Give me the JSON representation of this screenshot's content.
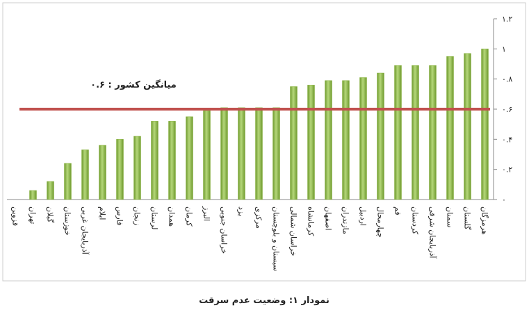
{
  "chart_data": {
    "type": "bar",
    "title": "نمودار ۱: وضعيت عدم سرقت",
    "annotation": "ميانگين كشور : ۰.۶",
    "average": 0.6,
    "average_color": "#c0504d",
    "categories": [
      "قزوين",
      "تهران",
      "گيلان",
      "خوزستان",
      "آذربايجان غربی",
      "ايلام",
      "فارس",
      "زنجان",
      "لرستان",
      "همدان",
      "كرمان",
      "البرز",
      "خراسان جنوبی",
      "يزد",
      "مركزی",
      "سيستان و بلوچستان",
      "خراسان شمالی",
      "كرمانشاه",
      "اصفهان",
      "مازندران",
      "اردبيل",
      "چهارمحال",
      "قم",
      "كردستان",
      "آذربايجان شرقی",
      "سمنان",
      "گلستان",
      "هرمزگان"
    ],
    "values": [
      0,
      0.06,
      0.12,
      0.24,
      0.33,
      0.36,
      0.4,
      0.42,
      0.52,
      0.52,
      0.55,
      0.59,
      0.61,
      0.61,
      0.61,
      0.61,
      0.75,
      0.76,
      0.79,
      0.79,
      0.81,
      0.84,
      0.89,
      0.89,
      0.89,
      0.95,
      0.97,
      1.0
    ],
    "color": "#8cb545",
    "ylim": [
      0,
      1.2
    ],
    "yticks": [
      {
        "value": 0,
        "label": "۰"
      },
      {
        "value": 0.2,
        "label": "۰.۲"
      },
      {
        "value": 0.4,
        "label": "۰.۴"
      },
      {
        "value": 0.6,
        "label": "۰.۶"
      },
      {
        "value": 0.8,
        "label": "۰.۸"
      },
      {
        "value": 1,
        "label": "۱"
      },
      {
        "value": 1.2,
        "label": "۱.۲"
      }
    ],
    "grid": false
  }
}
